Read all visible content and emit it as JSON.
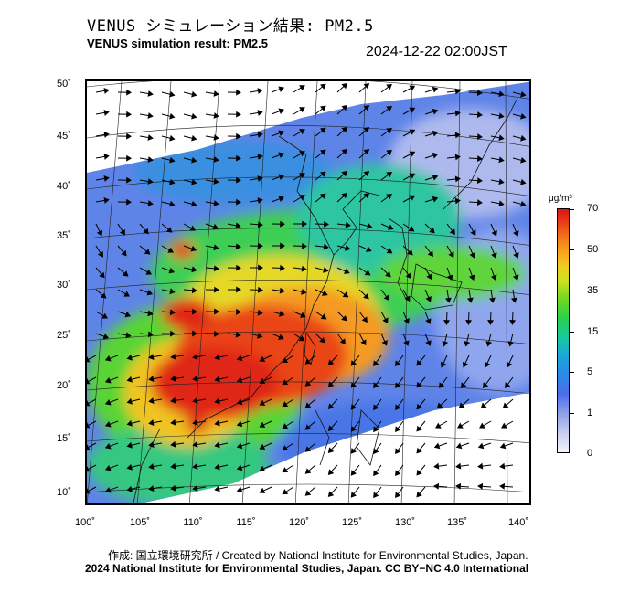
{
  "title_jp": "VENUS シミュレーション結果: PM2.5",
  "title_en": "VENUS simulation result: PM2.5",
  "timestamp": "2024-12-22 02:00JST",
  "lat_labels": [
    "50˚",
    "45˚",
    "40˚",
    "35˚",
    "30˚",
    "25˚",
    "20˚",
    "15˚",
    "10˚"
  ],
  "lon_labels": [
    "100˚",
    "105˚",
    "110˚",
    "115˚",
    "120˚",
    "125˚",
    "130˚",
    "135˚",
    "140˚"
  ],
  "colorbar": {
    "unit": "μg/m³",
    "ticks": [
      "70",
      "50",
      "35",
      "15",
      "5",
      "1",
      "0"
    ]
  },
  "credit": "作成: 国立環境研究所 / Created by National Institute for Environmental Studies, Japan.",
  "copyright": "2024 National Institute for Environmental Studies, Japan. CC BY−NC 4.0 International",
  "colors": {
    "clean": "#f4f4fb",
    "low": "#4a6ee8",
    "mid": "#28d050",
    "high": "#f8a020",
    "extreme": "#e01810"
  }
}
